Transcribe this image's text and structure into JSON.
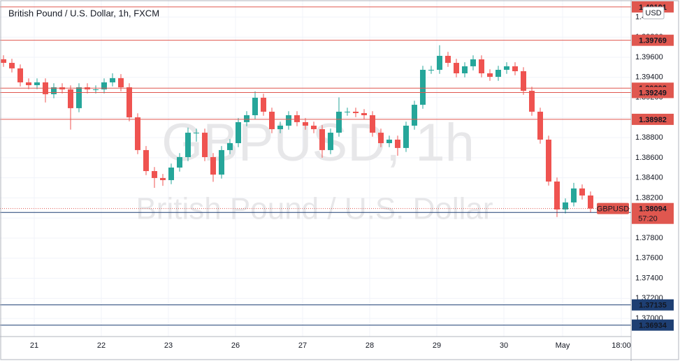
{
  "chart_data": {
    "type": "candlestick",
    "title": "British Pound / U.S. Dollar, 1h, FXCM",
    "watermark": [
      "GBPUSD, 1h",
      "British Pound / U.S. Dollar"
    ],
    "currency": "USD",
    "up_color": "#26a69a",
    "down_color": "#ef5350",
    "grid": true,
    "x": [
      0,
      3,
      6,
      9,
      12,
      15,
      18,
      21,
      24,
      27,
      30,
      33,
      36,
      39,
      42,
      45,
      48,
      51,
      54,
      57,
      60,
      63,
      66,
      69,
      72,
      75,
      78,
      81,
      84,
      87,
      90,
      93,
      96,
      99,
      102,
      105,
      108,
      111,
      114,
      117,
      120,
      123,
      126,
      129,
      132,
      135,
      138,
      141,
      144,
      147,
      150,
      153,
      156,
      159,
      162,
      165,
      168,
      171,
      174,
      177,
      180,
      183,
      186,
      189,
      192,
      195,
      198,
      201,
      204,
      207,
      210
    ],
    "open": [
      1.3958,
      1.39544,
      1.39489,
      1.3935,
      1.39322,
      1.3935,
      1.39232,
      1.39301,
      1.3928,
      1.39093,
      1.39301,
      1.3928,
      1.3928,
      1.3935,
      1.39392,
      1.39301,
      1.39002,
      1.38676,
      1.38467,
      1.38398,
      1.38377,
      1.38502,
      1.38606,
      1.38849,
      1.38849,
      1.38606,
      1.38432,
      1.38676,
      1.38745,
      1.38954,
      1.39023,
      1.39197,
      1.39058,
      1.38884,
      1.38919,
      1.39023,
      1.38954,
      1.38919,
      1.38884,
      1.38676,
      1.38849,
      1.39058,
      1.39058,
      1.39044,
      1.39023,
      1.38849,
      1.38745,
      1.3878,
      1.38697,
      1.38919,
      1.39127,
      1.39475,
      1.39475,
      1.39614,
      1.39544,
      1.3944,
      1.3951,
      1.39579,
      1.3944,
      1.39405,
      1.39475,
      1.3951,
      1.39461,
      1.39266,
      1.39058,
      1.3878,
      1.38363,
      1.38085,
      1.38155,
      1.38294,
      1.38224
    ],
    "high": [
      1.3962,
      1.39584,
      1.39529,
      1.3939,
      1.3939,
      1.3939,
      1.39341,
      1.39341,
      1.3932,
      1.39341,
      1.39341,
      1.3932,
      1.3939,
      1.3944,
      1.39432,
      1.39341,
      1.39042,
      1.38716,
      1.38507,
      1.38438,
      1.38542,
      1.38646,
      1.389,
      1.38889,
      1.38889,
      1.38646,
      1.38716,
      1.38785,
      1.38994,
      1.39063,
      1.3926,
      1.39237,
      1.39098,
      1.38959,
      1.39063,
      1.39063,
      1.38994,
      1.38959,
      1.38924,
      1.38889,
      1.392,
      1.39098,
      1.39098,
      1.39084,
      1.39063,
      1.38889,
      1.3882,
      1.3882,
      1.38959,
      1.39167,
      1.39515,
      1.39515,
      1.3972,
      1.39654,
      1.39584,
      1.3955,
      1.39619,
      1.39619,
      1.3948,
      1.39515,
      1.3955,
      1.3955,
      1.39501,
      1.39306,
      1.39098,
      1.3882,
      1.38403,
      1.38195,
      1.3835,
      1.38334,
      1.38264
    ],
    "low": [
      1.39504,
      1.39449,
      1.3931,
      1.39282,
      1.39282,
      1.3915,
      1.39192,
      1.3924,
      1.3888,
      1.39053,
      1.3924,
      1.3924,
      1.3924,
      1.3931,
      1.39261,
      1.38962,
      1.38636,
      1.38427,
      1.383,
      1.3832,
      1.38337,
      1.38462,
      1.38566,
      1.3876,
      1.38566,
      1.3836,
      1.38392,
      1.38636,
      1.38705,
      1.38914,
      1.38983,
      1.39018,
      1.38844,
      1.38844,
      1.38879,
      1.38914,
      1.38879,
      1.38844,
      1.386,
      1.38636,
      1.38809,
      1.39018,
      1.39004,
      1.38983,
      1.38809,
      1.38705,
      1.38705,
      1.3862,
      1.38657,
      1.38879,
      1.39087,
      1.39435,
      1.39435,
      1.39504,
      1.394,
      1.394,
      1.3947,
      1.394,
      1.39365,
      1.39365,
      1.39435,
      1.39421,
      1.39226,
      1.39018,
      1.3874,
      1.38323,
      1.3801,
      1.38045,
      1.38115,
      1.38184,
      1.38054
    ],
    "close": [
      1.39544,
      1.39489,
      1.3935,
      1.39322,
      1.3935,
      1.39232,
      1.39301,
      1.3928,
      1.39093,
      1.39301,
      1.3928,
      1.3928,
      1.3935,
      1.39392,
      1.39301,
      1.39002,
      1.38676,
      1.38467,
      1.38398,
      1.38377,
      1.38502,
      1.38606,
      1.38849,
      1.38849,
      1.38606,
      1.38432,
      1.38676,
      1.38745,
      1.38954,
      1.39023,
      1.39197,
      1.39058,
      1.38884,
      1.38919,
      1.39023,
      1.38954,
      1.38919,
      1.38884,
      1.38676,
      1.38849,
      1.39058,
      1.39058,
      1.39044,
      1.39023,
      1.38849,
      1.38745,
      1.3878,
      1.38697,
      1.38919,
      1.39127,
      1.39475,
      1.39475,
      1.39614,
      1.39544,
      1.3944,
      1.3951,
      1.39579,
      1.3944,
      1.39405,
      1.39475,
      1.3951,
      1.39461,
      1.39266,
      1.39058,
      1.3878,
      1.38363,
      1.38085,
      1.38155,
      1.38294,
      1.38224,
      1.38094
    ],
    "xlim": [
      0,
      224
    ],
    "xticks": [
      {
        "value": 11,
        "label": "21"
      },
      {
        "value": 35,
        "label": "22"
      },
      {
        "value": 59,
        "label": "23"
      },
      {
        "value": 83,
        "label": "26"
      },
      {
        "value": 107,
        "label": "27"
      },
      {
        "value": 131,
        "label": "28"
      },
      {
        "value": 155,
        "label": "29"
      },
      {
        "value": 179,
        "label": "30"
      },
      {
        "value": 200,
        "label": "May"
      },
      {
        "value": 221,
        "label": "18:00"
      }
    ],
    "ylim": [
      1.3682,
      1.40135
    ],
    "yticks": [
      {
        "value": 1.37,
        "label": "1.37000"
      },
      {
        "value": 1.372,
        "label": "1.37200"
      },
      {
        "value": 1.374,
        "label": "1.37400"
      },
      {
        "value": 1.376,
        "label": "1.37600"
      },
      {
        "value": 1.378,
        "label": "1.37800"
      },
      {
        "value": 1.38,
        "label": "1.38000"
      },
      {
        "value": 1.382,
        "label": "1.38200"
      },
      {
        "value": 1.384,
        "label": "1.38400"
      },
      {
        "value": 1.386,
        "label": "1.38600"
      },
      {
        "value": 1.388,
        "label": "1.38800"
      },
      {
        "value": 1.39,
        "label": "1.39000"
      },
      {
        "value": 1.392,
        "label": "1.39200"
      },
      {
        "value": 1.394,
        "label": "1.39400"
      },
      {
        "value": 1.396,
        "label": "1.39600"
      },
      {
        "value": 1.398,
        "label": "1.39800"
      },
      {
        "value": 1.4,
        "label": "1.40000"
      }
    ],
    "levels": [
      {
        "value": 1.40101,
        "label": "1.40101",
        "color": "#e0574f"
      },
      {
        "value": 1.39769,
        "label": "1.39769",
        "color": "#e0574f"
      },
      {
        "value": 1.39292,
        "label": "1.39292",
        "color": "#e0574f"
      },
      {
        "value": 1.39249,
        "label": "1.39249",
        "color": "#e0574f"
      },
      {
        "value": 1.38982,
        "label": "1.38982",
        "color": "#e0574f"
      },
      {
        "value": 1.38055,
        "label": "1.38055",
        "color": "#1e3f73"
      },
      {
        "value": 1.37135,
        "label": "1.37135",
        "color": "#1e3f73"
      },
      {
        "value": 1.36934,
        "label": "1.36934",
        "color": "#1e3f73"
      }
    ],
    "current": {
      "name": "GBPUSD",
      "value": 1.38094,
      "label": "1.38094",
      "countdown": "57:20",
      "color": "#e0574f"
    }
  }
}
